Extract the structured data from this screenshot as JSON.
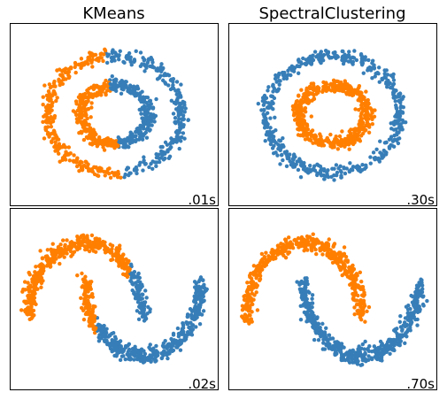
{
  "colors": {
    "cluster_0": "#377eb8",
    "cluster_1": "#ff7f00",
    "frame": "#000000",
    "background": "#ffffff"
  },
  "columns": [
    "KMeans",
    "SpectralClustering"
  ],
  "chart_data": [
    {
      "type": "scatter",
      "title": "KMeans",
      "dataset": "circles",
      "time_label": ".01s",
      "xlim": [
        -1.55,
        1.55
      ],
      "ylim": [
        -1.55,
        1.55
      ],
      "grid": false,
      "axes_ticks": false,
      "points_per_ring": 500,
      "series": [
        {
          "ring_radius": 1.0,
          "assignment": "left-half-orange",
          "colors": [
            "#ff7f00",
            "#377eb8"
          ]
        },
        {
          "ring_radius": 0.5,
          "assignment": "left-half-orange",
          "colors": [
            "#ff7f00",
            "#377eb8"
          ]
        }
      ]
    },
    {
      "type": "scatter",
      "title": "SpectralClustering",
      "dataset": "circles",
      "time_label": ".30s",
      "xlim": [
        -1.55,
        1.55
      ],
      "ylim": [
        -1.55,
        1.55
      ],
      "grid": false,
      "axes_ticks": false,
      "points_per_ring": 500,
      "series": [
        {
          "ring_radius": 1.0,
          "color": "#377eb8"
        },
        {
          "ring_radius": 0.5,
          "color": "#ff7f00"
        }
      ]
    },
    {
      "type": "scatter",
      "title": "",
      "dataset": "moons",
      "time_label": ".02s",
      "xlim": [
        -1.3,
        2.3
      ],
      "ylim": [
        -0.95,
        1.45
      ],
      "grid": false,
      "axes_ticks": false,
      "points_per_moon": 500,
      "series": [
        {
          "moon": "upper",
          "center": [
            0,
            0
          ],
          "assignment": "x-below-0.78-orange",
          "colors": [
            "#ff7f00",
            "#377eb8"
          ]
        },
        {
          "moon": "lower",
          "center": [
            1,
            0.5
          ],
          "assignment": "x-below-0.18-orange",
          "colors": [
            "#ff7f00",
            "#377eb8"
          ]
        }
      ]
    },
    {
      "type": "scatter",
      "title": "",
      "dataset": "moons",
      "time_label": ".70s",
      "xlim": [
        -1.3,
        2.3
      ],
      "ylim": [
        -0.95,
        1.45
      ],
      "grid": false,
      "axes_ticks": false,
      "points_per_moon": 500,
      "series": [
        {
          "moon": "upper",
          "center": [
            0,
            0
          ],
          "color": "#ff7f00"
        },
        {
          "moon": "lower",
          "center": [
            1,
            0.5
          ],
          "color": "#377eb8"
        }
      ]
    }
  ]
}
